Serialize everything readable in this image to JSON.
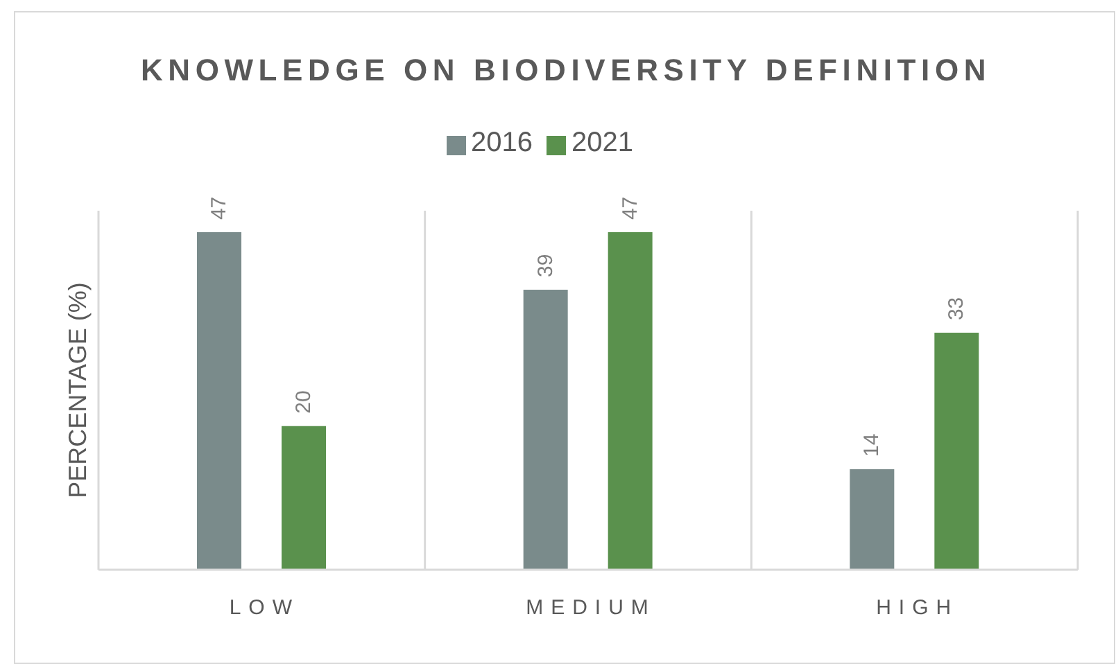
{
  "chart_data": {
    "type": "bar",
    "title": "KNOWLEDGE ON BIODIVERSITY DEFINITION",
    "ylabel": "PERCENTAGE (%)",
    "categories": [
      "LOW",
      "MEDIUM",
      "HIGH"
    ],
    "series": [
      {
        "name": "2016",
        "color": "#7a8b8b",
        "values": [
          47,
          39,
          14
        ]
      },
      {
        "name": "2021",
        "color": "#5a914d",
        "values": [
          20,
          47,
          33
        ]
      }
    ],
    "ylim": [
      0,
      50
    ],
    "tick_labels": "x",
    "data_labels": true,
    "grid": "x",
    "legend": "top"
  }
}
